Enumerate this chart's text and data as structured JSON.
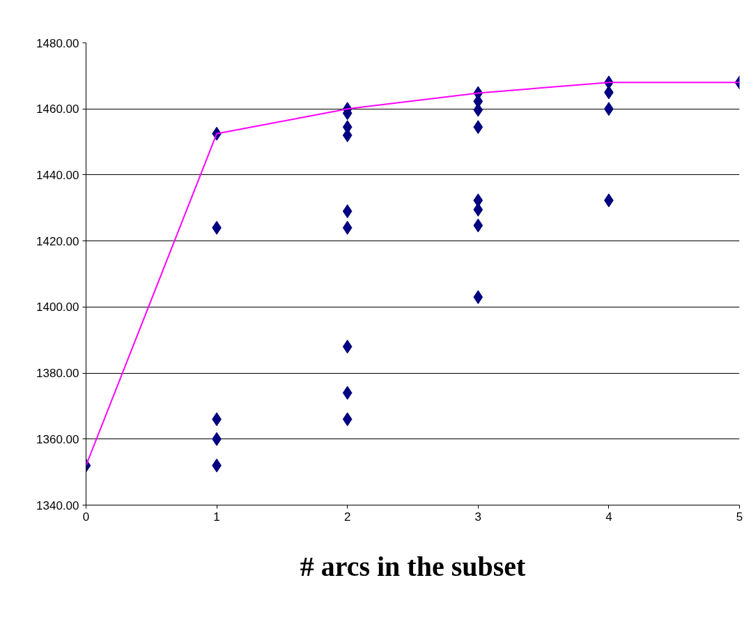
{
  "chart_data": {
    "type": "scatter",
    "xlabel": "# arcs in the subset",
    "xlim": [
      0,
      5
    ],
    "xticks": [
      0,
      1,
      2,
      3,
      4,
      5
    ],
    "ylim": [
      1340,
      1480
    ],
    "yticks": [
      {
        "value": 1340,
        "label": "1340.00"
      },
      {
        "value": 1360,
        "label": "1360.00"
      },
      {
        "value": 1380,
        "label": "1380.00"
      },
      {
        "value": 1400,
        "label": "1400.00"
      },
      {
        "value": 1420,
        "label": "1420.00"
      },
      {
        "value": 1440,
        "label": "1440.00"
      },
      {
        "value": 1460,
        "label": "1460.00"
      },
      {
        "value": 1480,
        "label": "1480.00"
      }
    ],
    "grid": "y",
    "series": [
      {
        "color": "#000080",
        "marker": "diamond",
        "x": [
          0,
          1,
          1,
          1,
          1,
          1,
          2,
          2,
          2,
          2,
          2,
          2,
          2,
          2,
          2,
          3,
          3,
          3,
          3,
          3,
          3,
          3,
          3,
          4,
          4,
          4,
          4,
          5
        ],
        "values": [
          1352,
          1452.5,
          1424,
          1366,
          1360,
          1352,
          1460,
          1458.7,
          1454.5,
          1452,
          1429,
          1424,
          1388,
          1374,
          1366,
          1464.8,
          1462.3,
          1459.7,
          1454.5,
          1432.3,
          1429.5,
          1424.7,
          1403,
          1468,
          1465,
          1460,
          1432.3,
          1468
        ]
      },
      {
        "type": "line",
        "color": "#ff00ff",
        "marker": "none",
        "line_style": "solid",
        "x": [
          0,
          1,
          2,
          3,
          4,
          5
        ],
        "values": [
          1352,
          1452.5,
          1460,
          1464.8,
          1468,
          1468
        ]
      }
    ]
  }
}
